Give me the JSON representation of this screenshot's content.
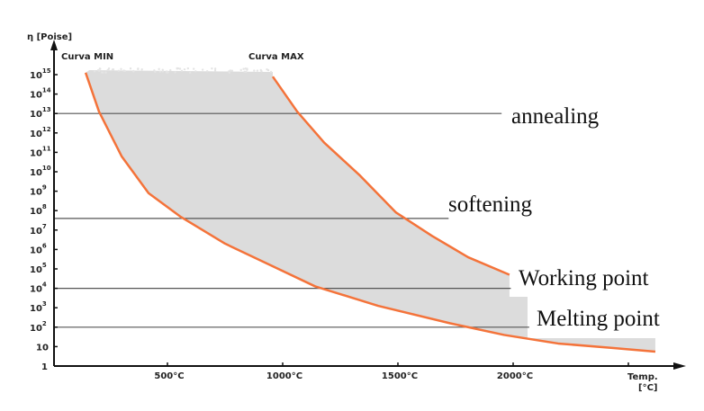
{
  "chart_data": {
    "type": "area",
    "title": "",
    "ylabel": "η [Poise]",
    "xlabel": "Temp.",
    "xlabel_unit": "[°C]",
    "xticks": [
      500,
      1000,
      1500,
      2000
    ],
    "xtick_labels": [
      "500°C",
      "1000°C",
      "1500°C",
      "2000°C"
    ],
    "xlim": [
      0,
      2650
    ],
    "yscale": "log",
    "ylim_log10": [
      0,
      15
    ],
    "ytick_labels": [
      {
        "base": "1",
        "exp": ""
      },
      {
        "base": "10",
        "exp": ""
      },
      {
        "base": "10",
        "exp": "2"
      },
      {
        "base": "10",
        "exp": "3"
      },
      {
        "base": "10",
        "exp": "4"
      },
      {
        "base": "10",
        "exp": "5"
      },
      {
        "base": "10",
        "exp": "6"
      },
      {
        "base": "10",
        "exp": "7"
      },
      {
        "base": "10",
        "exp": "8"
      },
      {
        "base": "10",
        "exp": "9"
      },
      {
        "base": "10",
        "exp": "10"
      },
      {
        "base": "10",
        "exp": "11"
      },
      {
        "base": "10",
        "exp": "12"
      },
      {
        "base": "10",
        "exp": "13"
      },
      {
        "base": "10",
        "exp": "14"
      },
      {
        "base": "10",
        "exp": "15"
      }
    ],
    "series": [
      {
        "name": "Curva MIN",
        "color": "#f4733a",
        "points": [
          [
            145,
            15.1
          ],
          [
            203,
            13.1
          ],
          [
            301,
            10.8
          ],
          [
            418,
            8.9
          ],
          [
            555,
            7.7
          ],
          [
            750,
            6.3
          ],
          [
            945,
            5.2
          ],
          [
            1141,
            4.1
          ],
          [
            1414,
            3.1
          ],
          [
            1727,
            2.2
          ],
          [
            1961,
            1.6
          ],
          [
            2195,
            1.16
          ],
          [
            2430,
            0.93
          ],
          [
            2617,
            0.74
          ]
        ]
      },
      {
        "name": "Curva MAX",
        "color": "#f4733a",
        "points": [
          [
            957,
            14.9
          ],
          [
            1063,
            13.1
          ],
          [
            1180,
            11.5
          ],
          [
            1336,
            9.8
          ],
          [
            1492,
            7.9
          ],
          [
            1648,
            6.7
          ],
          [
            1805,
            5.6
          ],
          [
            1984,
            4.7
          ]
        ]
      }
    ],
    "band_color": "#dcdcdc",
    "reference_lines": [
      {
        "label": "annealing",
        "log10": 13,
        "x_end": 1950
      },
      {
        "label": "softening",
        "log10": 7.6,
        "x_end": 1720
      },
      {
        "label": "Working point",
        "log10": 4,
        "x_end": 1990
      },
      {
        "label": "Melting point",
        "log10": 2,
        "x_end": 2070
      }
    ]
  }
}
